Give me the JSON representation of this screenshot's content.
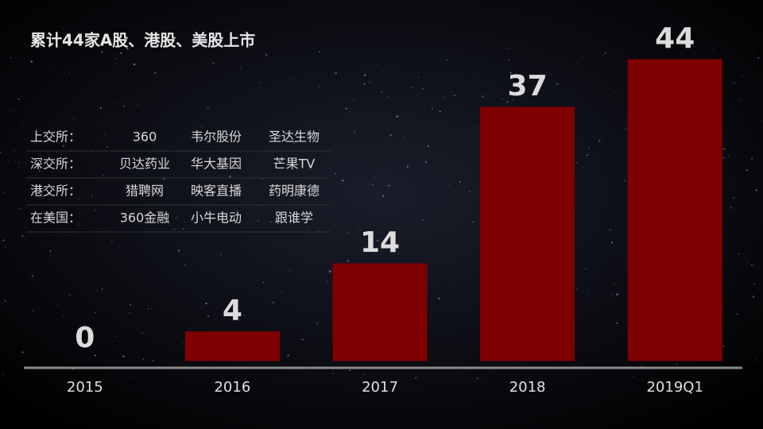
{
  "chart_data": {
    "type": "bar",
    "title": "累计44家A股、港股、美股上市",
    "categories": [
      "2015",
      "2016",
      "2017",
      "2018",
      "2019Q1"
    ],
    "values": [
      0,
      4,
      14,
      37,
      44
    ],
    "color": "#7f0000"
  },
  "table": {
    "rows": [
      [
        "上交所：",
        "360",
        "韦尔股份",
        "圣达生物"
      ],
      [
        "深交所：",
        "贝达药业",
        "华大基因",
        "芒果TV"
      ],
      [
        "港交所：",
        "猎聘网",
        "映客直播",
        "药明康德"
      ],
      [
        "在美国：",
        "360金融",
        "小牛电动",
        "跟谁学"
      ]
    ]
  }
}
